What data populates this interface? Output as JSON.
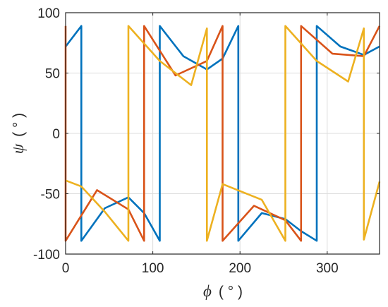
{
  "chart_data": {
    "type": "line",
    "title": "",
    "xlabel": "ϕ ( ° )",
    "ylabel": "ψ ( ° )",
    "xlabel_symbol": "ϕ",
    "xlabel_unit": "( ° )",
    "ylabel_symbol": "ψ",
    "ylabel_unit": "( ° )",
    "xlim": [
      0,
      360
    ],
    "ylim": [
      -100,
      100
    ],
    "xticks": [
      0,
      100,
      200,
      300
    ],
    "yticks": [
      -100,
      -50,
      0,
      50,
      100
    ],
    "xtick_labels": [
      "0",
      "100",
      "200",
      "300"
    ],
    "ytick_labels": [
      "-100",
      "-50",
      "0",
      "50",
      "100"
    ],
    "grid": true,
    "legend": "none",
    "series": [
      {
        "color": "#0072bd",
        "x": [
          0,
          18,
          18,
          45,
          72,
          90,
          108,
          108,
          135,
          162,
          180,
          198,
          198,
          225,
          252,
          270,
          288,
          288,
          315,
          342,
          360
        ],
        "y": [
          72,
          89,
          -89,
          -62,
          -53,
          -66,
          -89,
          89,
          64,
          53,
          62,
          89,
          -89,
          -66,
          -71,
          -81,
          -89,
          89,
          72,
          65,
          72
        ]
      },
      {
        "color": "#d95319",
        "x": [
          0,
          0,
          36,
          72,
          90,
          90,
          126,
          162,
          180,
          180,
          216,
          252,
          270,
          270,
          306,
          342,
          360
        ],
        "y": [
          89,
          -89,
          -47,
          -63,
          -89,
          89,
          48,
          60,
          89,
          -89,
          -60,
          -72,
          -89,
          89,
          66,
          64,
          89
        ]
      },
      {
        "color": "#edb120",
        "x": [
          0,
          18,
          45,
          72,
          72,
          108,
          144,
          162,
          162,
          180,
          225,
          252,
          252,
          288,
          324,
          342,
          342,
          360
        ],
        "y": [
          -39,
          -44,
          -65,
          -89,
          89,
          60,
          40,
          87,
          -89,
          -42,
          -55,
          -89,
          89,
          60,
          43,
          87,
          -88,
          -40
        ]
      }
    ]
  }
}
